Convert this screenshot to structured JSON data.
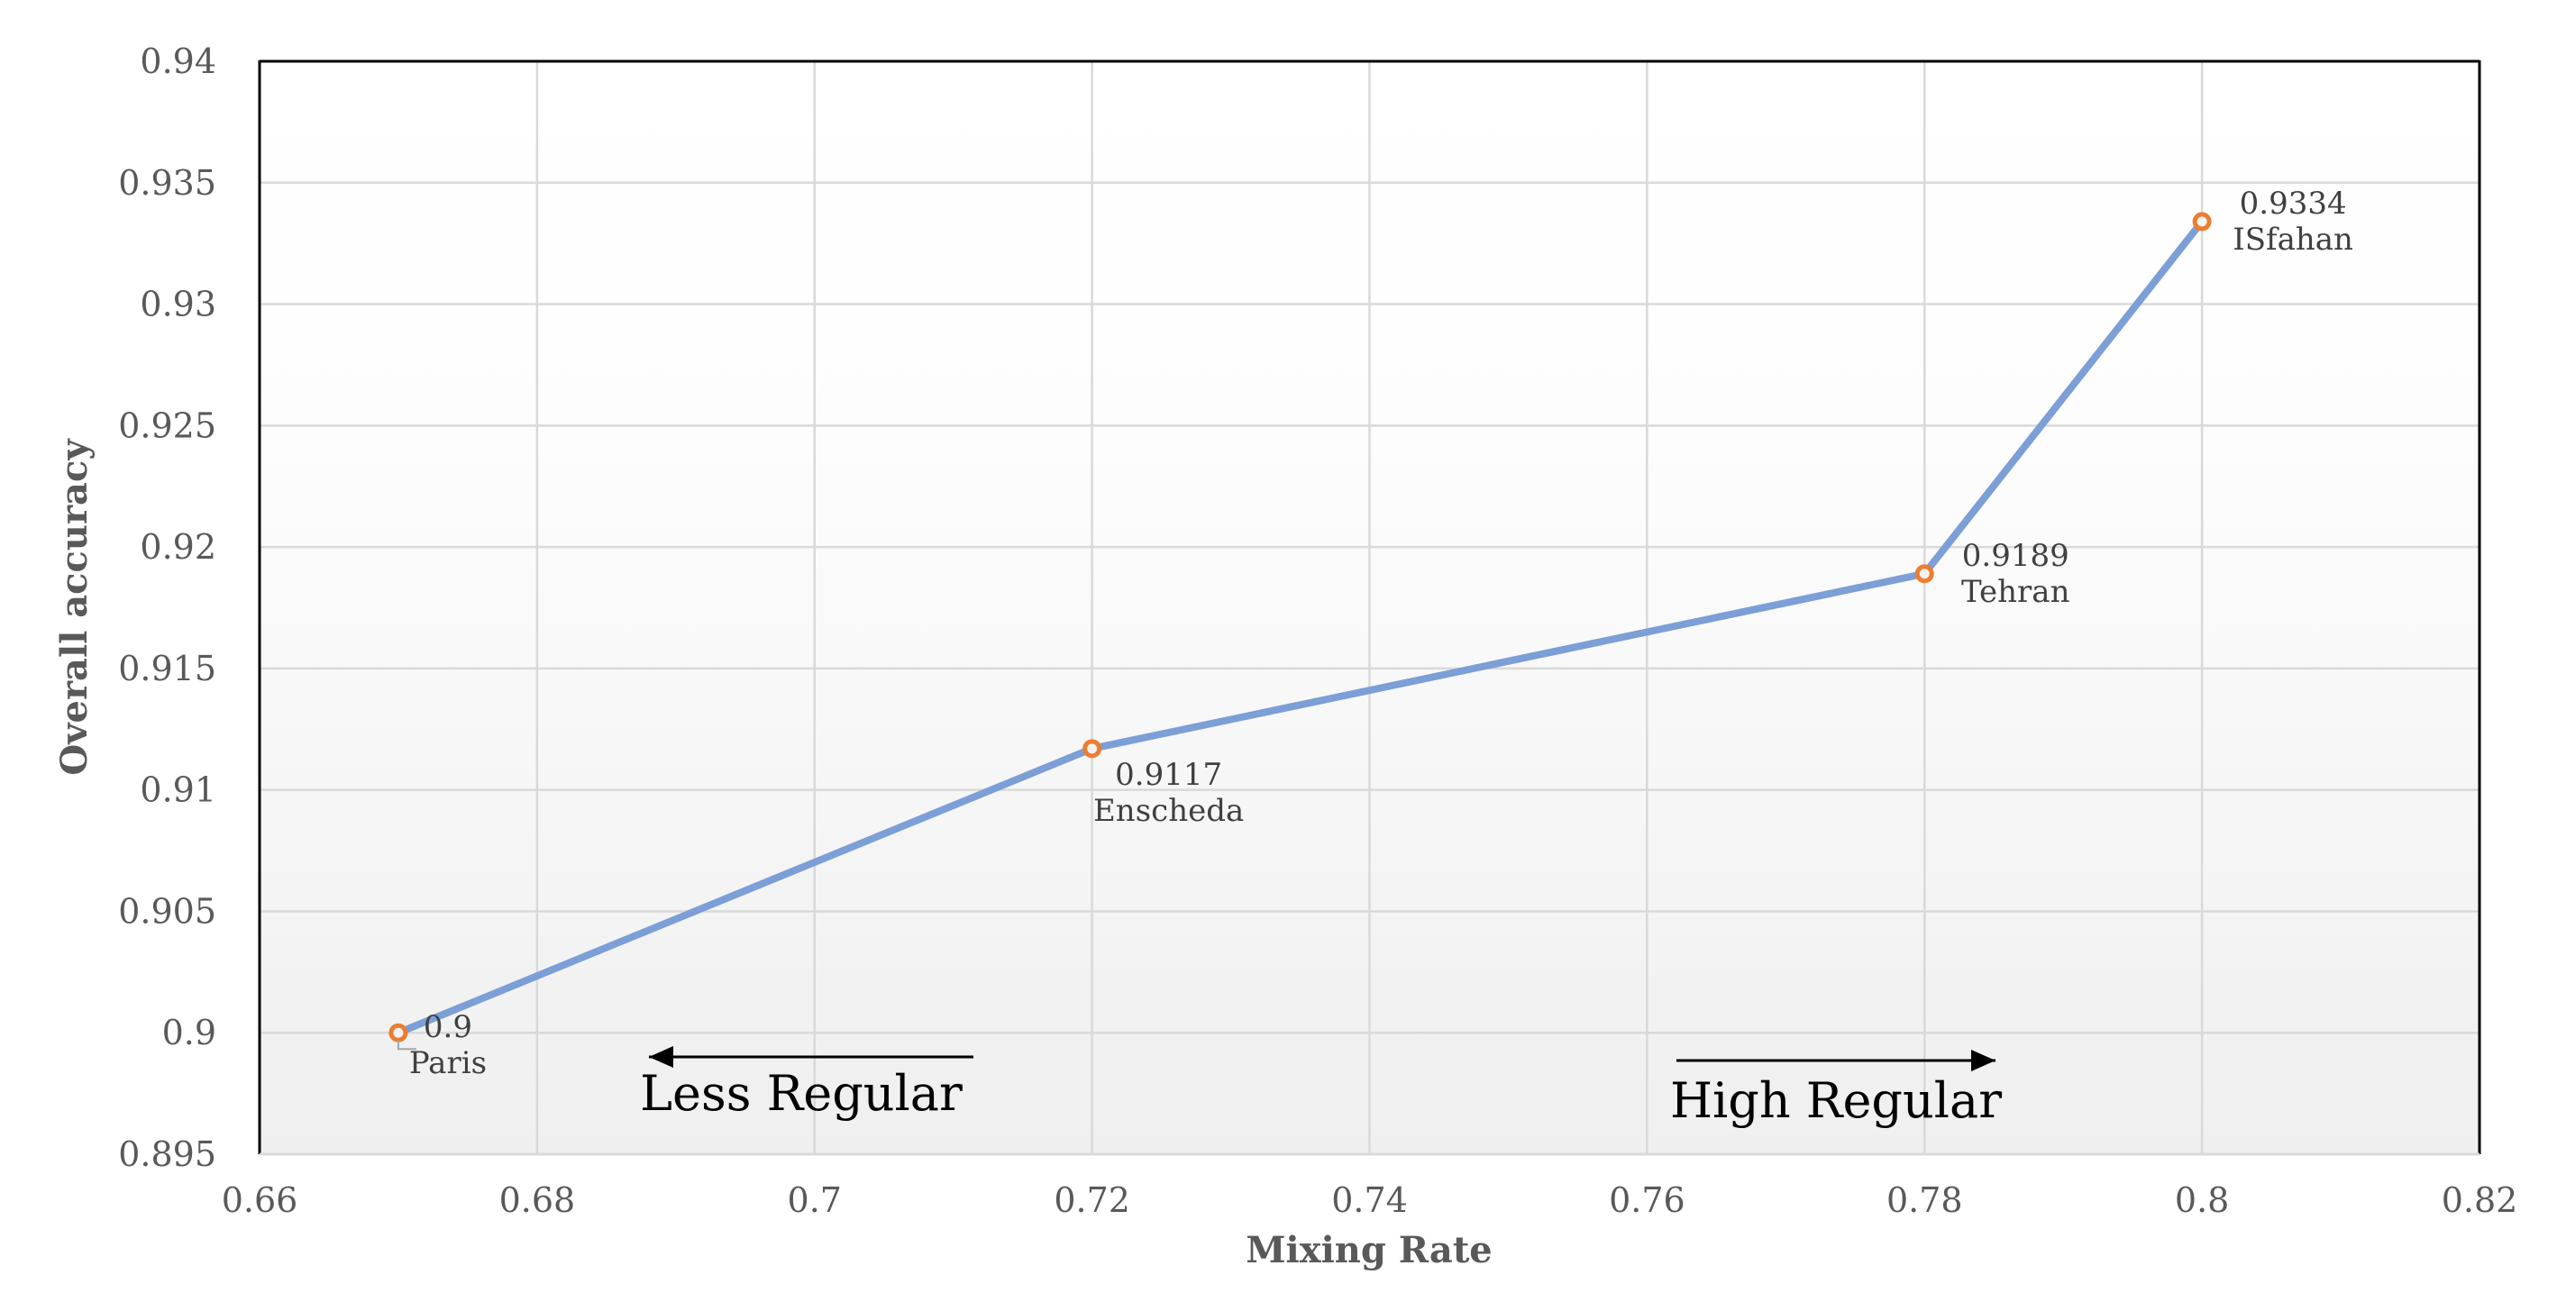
{
  "chart_data": {
    "type": "line",
    "title": "",
    "xlabel": "Mixing Rate",
    "ylabel": "Overall accuracy",
    "xlim": [
      0.66,
      0.82
    ],
    "ylim": [
      0.895,
      0.94
    ],
    "x_ticks": [
      "0.66",
      "0.68",
      "0.7",
      "0.72",
      "0.74",
      "0.76",
      "0.78",
      "0.8",
      "0.82"
    ],
    "y_ticks": [
      "0.895",
      "0.9",
      "0.905",
      "0.91",
      "0.915",
      "0.92",
      "0.925",
      "0.93",
      "0.935",
      "0.94"
    ],
    "grid": true,
    "series": [
      {
        "x": [
          0.67,
          0.72,
          0.78,
          0.8
        ],
        "y": [
          0.9,
          0.9117,
          0.9189,
          0.9334
        ],
        "point_values": [
          "0.9",
          "0.9117",
          "0.9189",
          "0.9334"
        ],
        "point_names": [
          "Paris",
          "Enscheda",
          "Tehran",
          "ISfahan"
        ],
        "line_color": "#7b9fd6",
        "marker_color": "#ed7d31"
      }
    ],
    "annotations": [
      {
        "text": "Less Regular",
        "direction": "left"
      },
      {
        "text": "High Regular",
        "direction": "right"
      }
    ]
  }
}
